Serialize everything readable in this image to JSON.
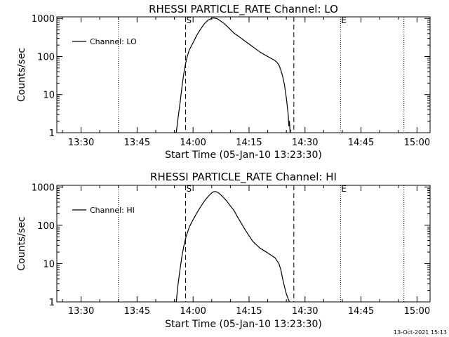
{
  "footer": {
    "date_stamp": "13-Oct-2021 15:13"
  },
  "chart_data": [
    {
      "type": "line",
      "title": "RHESSI PARTICLE_RATE Channel: LO",
      "xlabel": "Start Time (05-Jan-10 13:23:30)",
      "ylabel": "Counts/sec",
      "yscale": "log",
      "ylim": [
        1,
        1100
      ],
      "xlim": [
        "13:23:30",
        "15:03:30"
      ],
      "x_ticks": [
        "13:30",
        "13:45",
        "14:00",
        "14:15",
        "14:30",
        "14:45",
        "15:00"
      ],
      "y_ticks": [
        "1",
        "10",
        "100",
        "1000"
      ],
      "legend": {
        "label": "Channel: LO",
        "position": "top-left"
      },
      "markers": [
        {
          "label": "",
          "time": "13:40:00",
          "style": "dotted"
        },
        {
          "label": "S",
          "time": "13:58:00",
          "style": "dashed"
        },
        {
          "label": "",
          "time": "14:27:00",
          "style": "dashed"
        },
        {
          "label": "E",
          "time": "14:39:30",
          "style": "dotted"
        },
        {
          "label": "",
          "time": "14:56:30",
          "style": "dotted"
        }
      ],
      "series": [
        {
          "name": "Channel: LO",
          "x": [
            "13:55:30",
            "13:56:00",
            "13:56:30",
            "13:57:00",
            "13:57:30",
            "13:58:00",
            "13:58:30",
            "13:59:00",
            "14:00:00",
            "14:01:00",
            "14:02:00",
            "14:03:00",
            "14:04:00",
            "14:05:00",
            "14:05:30",
            "14:06:00",
            "14:06:30",
            "14:07:00",
            "14:08:00",
            "14:09:00",
            "14:10:00",
            "14:11:00",
            "14:12:00",
            "14:14:00",
            "14:16:00",
            "14:18:00",
            "14:20:00",
            "14:22:00",
            "14:22:30",
            "14:23:00",
            "14:23:30",
            "14:24:00",
            "14:24:30",
            "14:25:00",
            "14:25:30",
            "14:25:40",
            "14:25:50",
            "14:26:00",
            "14:26:10"
          ],
          "values": [
            1,
            2.5,
            6,
            15,
            35,
            65,
            105,
            150,
            230,
            360,
            520,
            720,
            900,
            1000,
            1030,
            1010,
            980,
            910,
            780,
            640,
            510,
            410,
            350,
            250,
            180,
            130,
            100,
            78,
            70,
            60,
            45,
            30,
            18,
            8,
            3,
            1.5,
            2,
            1,
            1.2
          ]
        }
      ]
    },
    {
      "type": "line",
      "title": "RHESSI PARTICLE_RATE Channel: HI",
      "xlabel": "Start Time (05-Jan-10 13:23:30)",
      "ylabel": "Counts/sec",
      "yscale": "log",
      "ylim": [
        1,
        1100
      ],
      "xlim": [
        "13:23:30",
        "15:03:30"
      ],
      "x_ticks": [
        "13:30",
        "13:45",
        "14:00",
        "14:15",
        "14:30",
        "14:45",
        "15:00"
      ],
      "y_ticks": [
        "1",
        "10",
        "100",
        "1000"
      ],
      "legend": {
        "label": "Channel: HI",
        "position": "top-left"
      },
      "markers": [
        {
          "label": "",
          "time": "13:40:00",
          "style": "dotted"
        },
        {
          "label": "S",
          "time": "13:58:00",
          "style": "dashed"
        },
        {
          "label": "",
          "time": "14:27:00",
          "style": "dashed"
        },
        {
          "label": "E",
          "time": "14:39:30",
          "style": "dotted"
        },
        {
          "label": "",
          "time": "14:56:30",
          "style": "dotted"
        }
      ],
      "series": [
        {
          "name": "Channel: HI",
          "x": [
            "13:55:30",
            "13:56:00",
            "13:56:30",
            "13:57:00",
            "13:57:30",
            "13:58:00",
            "13:58:30",
            "13:59:00",
            "14:00:00",
            "14:01:00",
            "14:02:00",
            "14:03:00",
            "14:04:00",
            "14:05:00",
            "14:05:30",
            "14:06:00",
            "14:06:30",
            "14:07:00",
            "14:08:00",
            "14:09:00",
            "14:10:00",
            "14:11:00",
            "14:12:00",
            "14:14:00",
            "14:16:00",
            "14:18:00",
            "14:20:00",
            "14:22:00",
            "14:23:00",
            "14:23:30",
            "14:24:00",
            "14:24:30",
            "14:25:00",
            "14:25:30",
            "14:25:50"
          ],
          "values": [
            1,
            3,
            7,
            15,
            28,
            45,
            65,
            90,
            140,
            210,
            300,
            420,
            560,
            700,
            750,
            760,
            730,
            680,
            550,
            430,
            320,
            240,
            160,
            75,
            38,
            25,
            19,
            14,
            10,
            7,
            4,
            2.5,
            1.6,
            1.2,
            1
          ]
        }
      ]
    }
  ]
}
